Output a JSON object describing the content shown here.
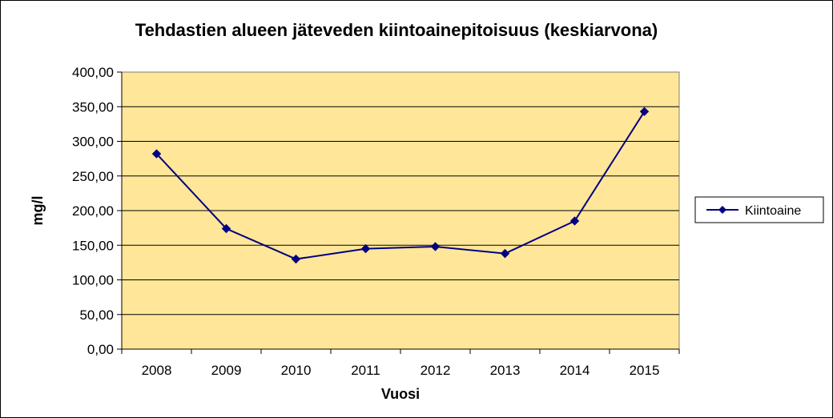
{
  "chart_data": {
    "type": "line",
    "title": "Tehdastien alueen jäteveden kiintoainepitoisuus (keskiarvona)",
    "xlabel": "Vuosi",
    "ylabel": "mg/l",
    "categories": [
      "2008",
      "2009",
      "2010",
      "2011",
      "2012",
      "2013",
      "2014",
      "2015"
    ],
    "series": [
      {
        "name": "Kiintoaine",
        "values": [
          282,
          174,
          130,
          145,
          148,
          138,
          185,
          343
        ],
        "color": "#000080"
      }
    ],
    "ylim": [
      0,
      400
    ],
    "yticks": [
      "0,00",
      "50,00",
      "100,00",
      "150,00",
      "200,00",
      "250,00",
      "300,00",
      "350,00",
      "400,00"
    ],
    "grid": true,
    "legend_position": "right",
    "plot_background": "#FFE699"
  }
}
